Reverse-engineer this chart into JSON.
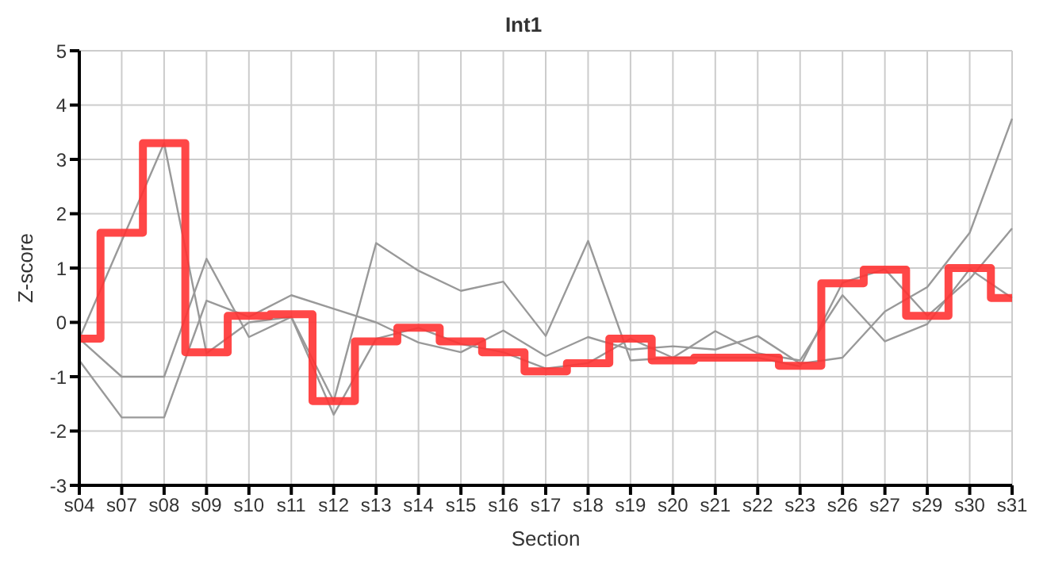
{
  "chart_data": {
    "type": "line",
    "title": "Int1",
    "xlabel": "Section",
    "ylabel": "Z-score",
    "categories": [
      "s04",
      "s07",
      "s08",
      "s09",
      "s10",
      "s11",
      "s12",
      "s13",
      "s14",
      "s15",
      "s16",
      "s17",
      "s18",
      "s19",
      "s20",
      "s21",
      "s22",
      "s23",
      "s26",
      "s27",
      "s29",
      "s30",
      "s31"
    ],
    "series": [
      {
        "color": "#999999",
        "values": [
          -0.3,
          1.5,
          3.3,
          -0.57,
          0.0,
          0.1,
          -1.7,
          -0.3,
          -0.1,
          -0.4,
          -0.55,
          -0.85,
          -0.75,
          -0.3,
          -0.65,
          -0.65,
          -0.65,
          -0.81,
          0.73,
          0.98,
          0.12,
          0.8,
          1.73
        ]
      },
      {
        "color": "#999999",
        "values": [
          -0.3,
          -1.0,
          -1.0,
          1.17,
          -0.27,
          0.1,
          -1.45,
          1.46,
          0.95,
          0.58,
          0.75,
          -0.25,
          1.5,
          -0.7,
          -0.65,
          -0.16,
          -0.57,
          -0.7,
          0.5,
          -0.35,
          -0.03,
          0.98,
          0.45
        ]
      },
      {
        "color": "#999999",
        "values": [
          -0.7,
          -1.75,
          -1.75,
          0.4,
          0.1,
          0.5,
          0.25,
          0.0,
          -0.37,
          -0.55,
          -0.15,
          -0.62,
          -0.27,
          -0.5,
          -0.44,
          -0.5,
          -0.25,
          -0.76,
          -0.65,
          0.2,
          0.65,
          1.65,
          3.75
        ]
      },
      {
        "type": "step",
        "color": "#ff3333",
        "values": [
          -0.3,
          1.65,
          3.3,
          -0.55,
          0.12,
          0.15,
          -1.45,
          -0.35,
          -0.1,
          -0.35,
          -0.55,
          -0.9,
          -0.75,
          -0.3,
          -0.7,
          -0.65,
          -0.65,
          -0.8,
          0.72,
          0.97,
          0.12,
          1.0,
          0.45
        ]
      }
    ],
    "ylim": [
      -3,
      5
    ],
    "yticks": [
      -3,
      -2,
      -1,
      0,
      1,
      2,
      3,
      4,
      5
    ],
    "grid": true,
    "legend": false
  }
}
